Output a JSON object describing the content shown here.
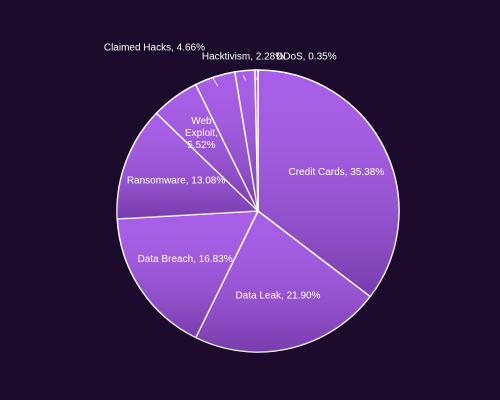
{
  "chart_data": {
    "type": "pie",
    "values": [
      35.38,
      21.9,
      16.83,
      13.08,
      5.52,
      4.66,
      2.28,
      0.35
    ],
    "value_labels": [
      "Credit Cards, 35.38%",
      "Data Leak, 21.90%",
      "Data Breach, 16.83%",
      "Ransomware, 13.08%",
      [
        "Web",
        "Exploit,",
        "5.52%"
      ],
      "Claimed Hacks, 4.66%",
      "Hacktivism, 2.28%",
      "DDoS, 0.35%"
    ],
    "color": "#a04fe6"
  }
}
